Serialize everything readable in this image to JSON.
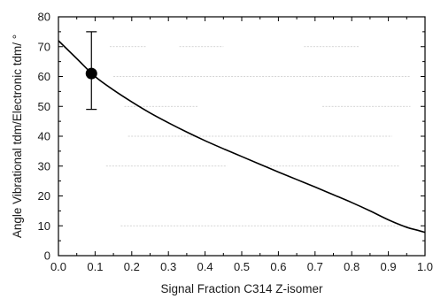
{
  "chart_data": {
    "type": "line",
    "title": "",
    "xlabel": "Signal Fraction C314 Z-isomer",
    "ylabel": "Angle Vibrational tdm/Electronic tdm/ °",
    "xlim": [
      0.0,
      1.0
    ],
    "ylim": [
      0,
      80
    ],
    "xticks": [
      0.0,
      0.1,
      0.2,
      0.3,
      0.4,
      0.5,
      0.6,
      0.7,
      0.8,
      0.9,
      1.0
    ],
    "xtick_labels": [
      "0.0",
      "0.1",
      "0.2",
      "0.3",
      "0.4",
      "0.5",
      "0.6",
      "0.7",
      "0.8",
      "0.9",
      "1.0"
    ],
    "yticks": [
      0,
      10,
      20,
      30,
      40,
      50,
      60,
      70,
      80
    ],
    "ytick_labels": [
      "0",
      "10",
      "20",
      "30",
      "40",
      "50",
      "60",
      "70",
      "80"
    ],
    "grid": false,
    "legend": "none",
    "series": [
      {
        "kind": "line",
        "color": "#000000",
        "x": [
          0.0,
          0.05,
          0.1,
          0.15,
          0.2,
          0.25,
          0.3,
          0.35,
          0.4,
          0.45,
          0.5,
          0.55,
          0.6,
          0.65,
          0.7,
          0.75,
          0.8,
          0.85,
          0.9,
          0.95,
          0.98,
          1.0
        ],
        "y": [
          72,
          66,
          60,
          55.5,
          51.5,
          47.8,
          44.5,
          41.4,
          38.5,
          35.8,
          33.2,
          30.6,
          28.0,
          25.5,
          23.0,
          20.4,
          17.8,
          15.0,
          12.0,
          9.5,
          8.5,
          7.8
        ]
      },
      {
        "kind": "point",
        "color": "#000000",
        "x": [
          0.09
        ],
        "y": [
          61
        ],
        "error_low": [
          49
        ],
        "error_high": [
          75
        ]
      }
    ]
  }
}
